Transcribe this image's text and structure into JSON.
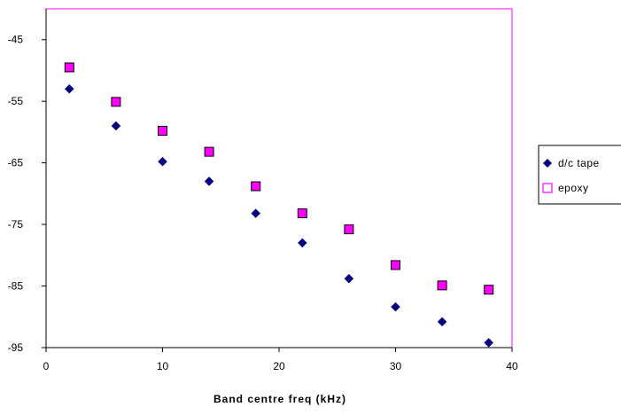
{
  "chart_data": {
    "type": "scatter",
    "title": "",
    "xlabel": "Band centre freq (kHz)",
    "ylabel": "",
    "xlim": [
      0,
      40
    ],
    "ylim": [
      -95,
      -40
    ],
    "x_ticks": [
      0,
      10,
      20,
      30,
      40
    ],
    "y_ticks": [
      -95,
      -85,
      -75,
      -65,
      -55,
      -45
    ],
    "x_tick_labels": [
      "0",
      "10",
      "20",
      "30",
      "40"
    ],
    "y_tick_labels": [
      "-95",
      "-85",
      "-75",
      "-65",
      "-55",
      "-45"
    ],
    "grid": false,
    "legend_position": "right",
    "plot_border_color": "#ff00ff",
    "series": [
      {
        "name": "d/c tape",
        "marker": "diamond",
        "color": "#000080",
        "x": [
          2,
          6,
          10,
          14,
          18,
          22,
          26,
          30,
          34,
          38
        ],
        "y": [
          -53,
          -59,
          -64.8,
          -68,
          -73.2,
          -78,
          -83.8,
          -88.4,
          -90.8,
          -94.2
        ]
      },
      {
        "name": "epoxy",
        "marker": "square",
        "color": "#ff00ff",
        "x": [
          2,
          6,
          10,
          14,
          18,
          22,
          26,
          30,
          34,
          38
        ],
        "y": [
          -49.5,
          -55.1,
          -59.8,
          -63.2,
          -68.8,
          -73.2,
          -75.8,
          -81.6,
          -84.9,
          -85.6
        ]
      }
    ]
  }
}
